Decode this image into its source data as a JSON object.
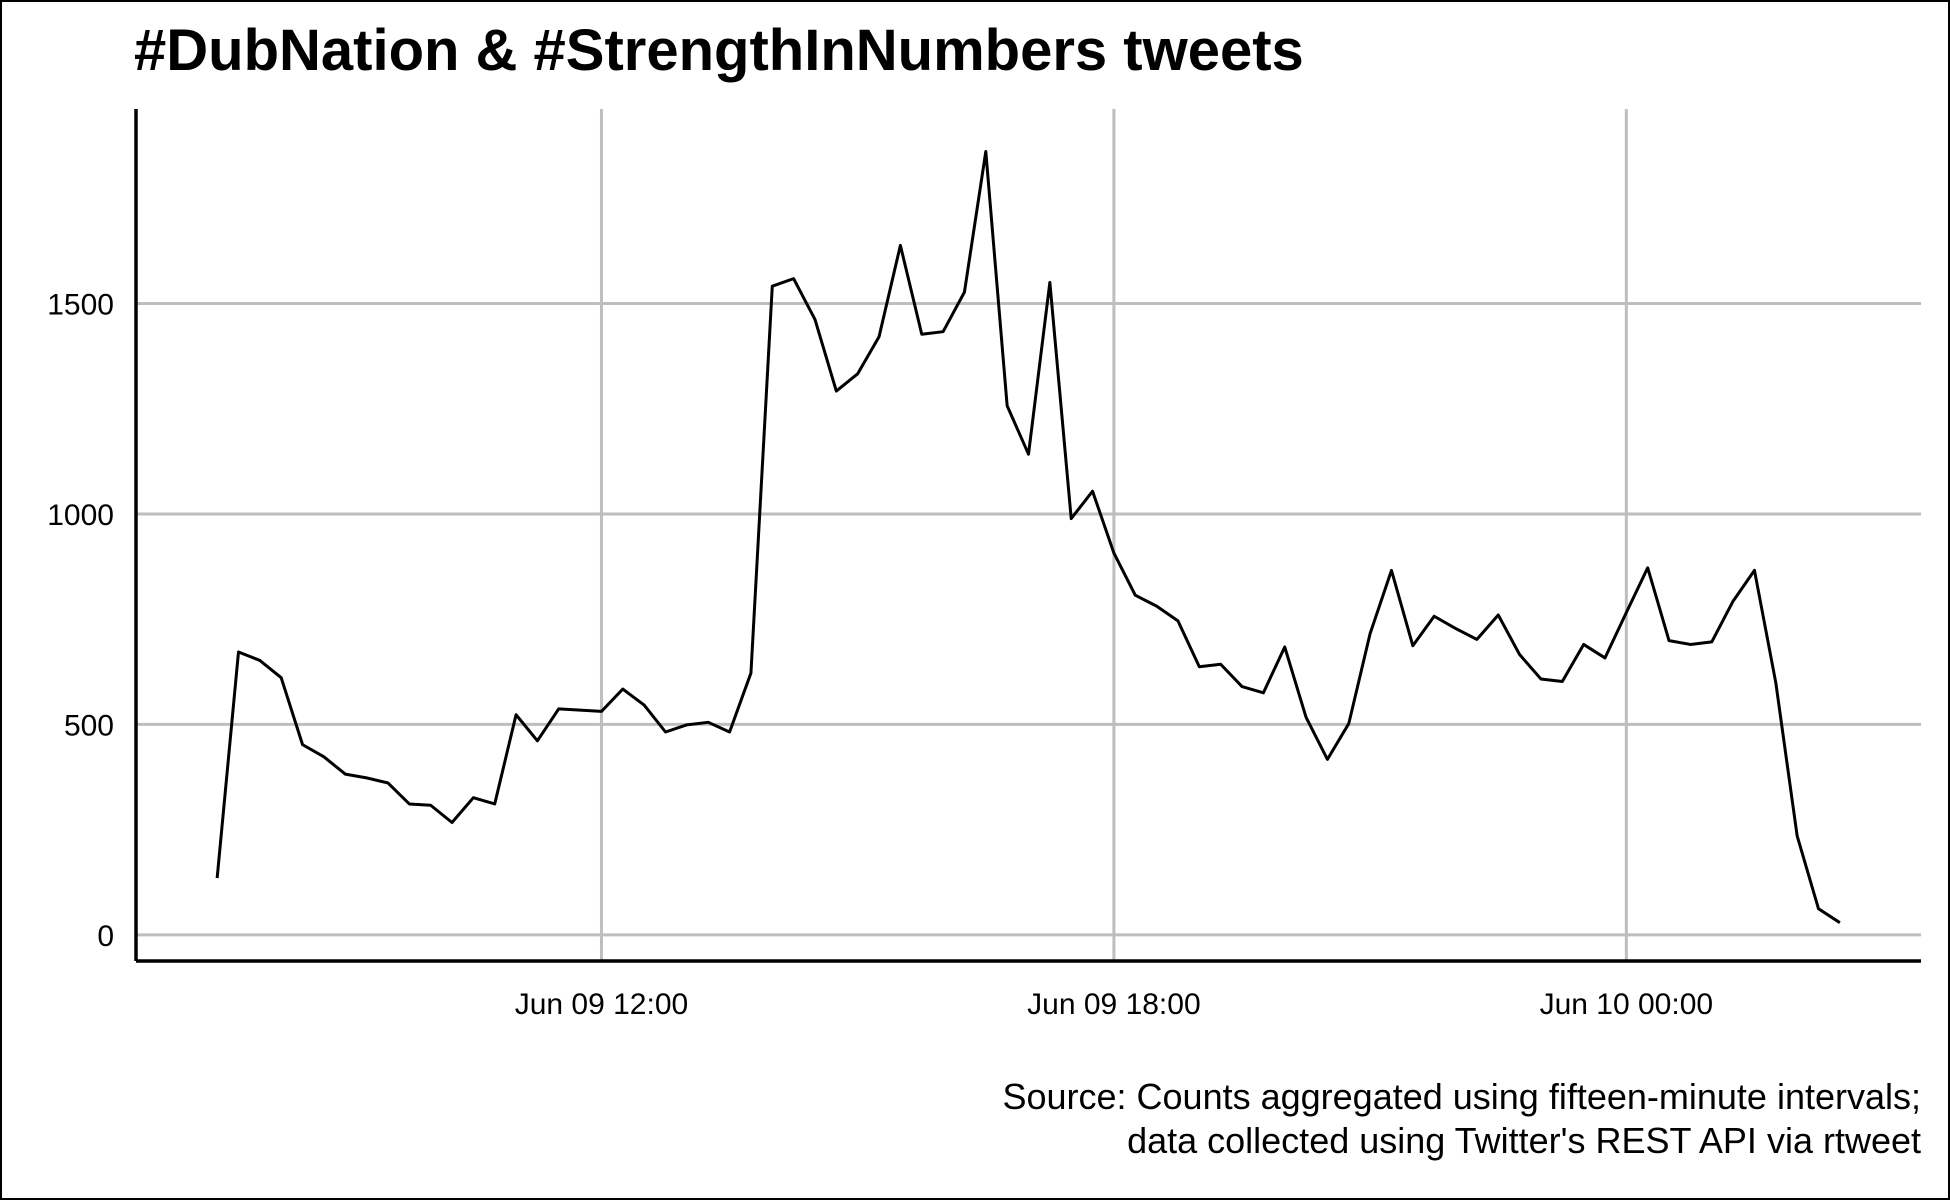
{
  "chart_data": {
    "type": "line",
    "title": "#DubNation & #StrengthInNumbers tweets",
    "caption": [
      "Source: Counts aggregated using fifteen-minute intervals;",
      "data collected using Twitter's REST API via rtweet"
    ],
    "color": "#000000",
    "grid": true,
    "x": [
      "Jun 09 07:30",
      "Jun 09 07:45",
      "Jun 09 08:00",
      "Jun 09 08:15",
      "Jun 09 08:30",
      "Jun 09 08:45",
      "Jun 09 09:00",
      "Jun 09 09:15",
      "Jun 09 09:30",
      "Jun 09 09:45",
      "Jun 09 10:00",
      "Jun 09 10:15",
      "Jun 09 10:30",
      "Jun 09 10:45",
      "Jun 09 11:00",
      "Jun 09 11:15",
      "Jun 09 11:30",
      "Jun 09 11:45",
      "Jun 09 12:00",
      "Jun 09 12:15",
      "Jun 09 12:30",
      "Jun 09 12:45",
      "Jun 09 13:00",
      "Jun 09 13:15",
      "Jun 09 13:30",
      "Jun 09 13:45",
      "Jun 09 14:00",
      "Jun 09 14:15",
      "Jun 09 14:30",
      "Jun 09 14:45",
      "Jun 09 15:00",
      "Jun 09 15:15",
      "Jun 09 15:30",
      "Jun 09 15:45",
      "Jun 09 16:00",
      "Jun 09 16:15",
      "Jun 09 16:30",
      "Jun 09 16:45",
      "Jun 09 17:00",
      "Jun 09 17:15",
      "Jun 09 17:30",
      "Jun 09 17:45",
      "Jun 09 18:00",
      "Jun 09 18:15",
      "Jun 09 18:30",
      "Jun 09 18:45",
      "Jun 09 19:00",
      "Jun 09 19:15",
      "Jun 09 19:30",
      "Jun 09 19:45",
      "Jun 09 20:00",
      "Jun 09 20:15",
      "Jun 09 20:30",
      "Jun 09 20:45",
      "Jun 09 21:00",
      "Jun 09 21:15",
      "Jun 09 21:30",
      "Jun 09 21:45",
      "Jun 09 22:00",
      "Jun 09 22:15",
      "Jun 09 22:30",
      "Jun 09 22:45",
      "Jun 09 23:00",
      "Jun 09 23:15",
      "Jun 09 23:30",
      "Jun 09 23:45",
      "Jun 10 00:00",
      "Jun 10 00:15",
      "Jun 10 00:30",
      "Jun 10 00:45",
      "Jun 10 01:00",
      "Jun 10 01:15",
      "Jun 10 01:30",
      "Jun 10 01:45",
      "Jun 10 02:00",
      "Jun 10 02:15",
      "Jun 10 02:30"
    ],
    "values": [
      135,
      672,
      652,
      611,
      452,
      423,
      382,
      373,
      361,
      311,
      308,
      267,
      326,
      311,
      523,
      461,
      537,
      534,
      531,
      584,
      546,
      482,
      499,
      505,
      482,
      622,
      1541,
      1559,
      1462,
      1292,
      1333,
      1421,
      1638,
      1427,
      1433,
      1527,
      1861,
      1257,
      1142,
      1550,
      989,
      1054,
      907,
      807,
      781,
      746,
      637,
      643,
      590,
      575,
      684,
      517,
      417,
      502,
      716,
      866,
      687,
      757,
      728,
      702,
      760,
      666,
      608,
      602,
      690,
      658,
      766,
      872,
      699,
      690,
      696,
      793,
      866,
      599,
      235,
      62,
      29
    ],
    "xlim": [
      "Jun 09 06:33",
      "Jun 10 03:27"
    ],
    "xticks": [
      "Jun 09 12:00",
      "Jun 09 18:00",
      "Jun 10 00:00"
    ],
    "ylim": [
      -62,
      1962
    ],
    "yticks": [
      0,
      500,
      1000,
      1500
    ]
  }
}
